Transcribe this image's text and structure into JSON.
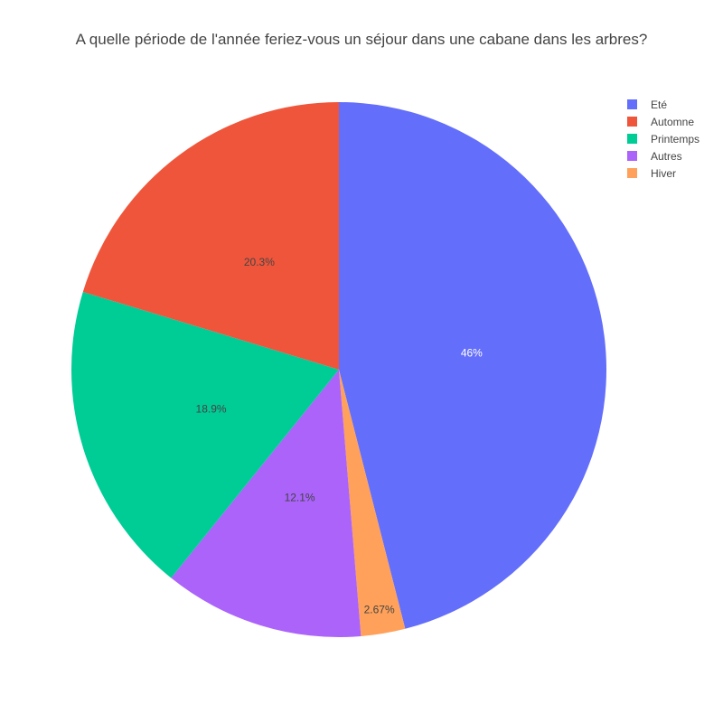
{
  "chart_data": {
    "type": "pie",
    "title": "A quelle période de l'année feriez-vous un séjour dans une cabane dans les arbres?",
    "categories": [
      "Eté",
      "Hiver",
      "Autres",
      "Printemps",
      "Automne"
    ],
    "values": [
      46.0,
      2.67,
      12.1,
      18.9,
      20.3
    ],
    "labels": [
      "46%",
      "2.67%",
      "12.1%",
      "18.9%",
      "20.3%"
    ],
    "colors": [
      "#636efa",
      "#ffa15a",
      "#ab63fa",
      "#00cc96",
      "#ef553b"
    ],
    "label_colors": [
      "#ffffff",
      "#444444",
      "#444444",
      "#444444",
      "#444444"
    ],
    "direction": "clockwise",
    "start_angle_deg": 0,
    "legend": {
      "position": "top-right",
      "order": [
        "Eté",
        "Automne",
        "Printemps",
        "Autres",
        "Hiver"
      ],
      "colors": [
        "#636efa",
        "#ef553b",
        "#00cc96",
        "#ab63fa",
        "#ffa15a"
      ]
    }
  }
}
